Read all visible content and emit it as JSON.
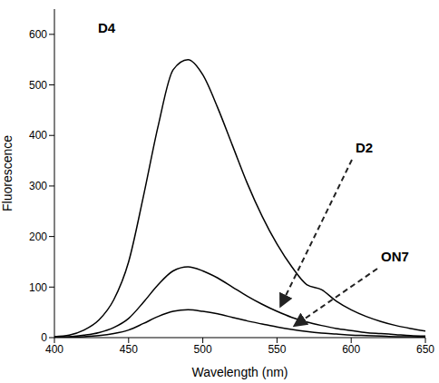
{
  "chart_data": {
    "type": "line",
    "x_label": "Wavelength (nm)",
    "y_label": "Fluorescence",
    "x": [
      400,
      410,
      420,
      430,
      440,
      450,
      460,
      470,
      480,
      490,
      500,
      510,
      520,
      530,
      540,
      550,
      560,
      570,
      580,
      590,
      600,
      610,
      620,
      630,
      640,
      650
    ],
    "series": [
      {
        "name": "D4",
        "color": "#000000",
        "values": [
          2,
          5,
          15,
          35,
          75,
          150,
          280,
          420,
          530,
          550,
          520,
          455,
          380,
          305,
          240,
          185,
          140,
          105,
          95,
          72,
          55,
          42,
          32,
          24,
          18,
          13
        ]
      },
      {
        "name": "D2",
        "color": "#000000",
        "values": [
          1,
          2,
          5,
          10,
          20,
          38,
          70,
          105,
          132,
          140,
          132,
          118,
          100,
          82,
          66,
          52,
          40,
          31,
          24,
          18,
          14,
          10,
          8,
          6,
          4,
          3
        ]
      },
      {
        "name": "ON7",
        "color": "#000000",
        "values": [
          1,
          1,
          2,
          4,
          8,
          15,
          28,
          42,
          52,
          55,
          52,
          47,
          40,
          33,
          27,
          21,
          16,
          12,
          9,
          7,
          5,
          4,
          3,
          2,
          2,
          1
        ]
      }
    ],
    "xlim": [
      400,
      650
    ],
    "xticks": [
      400,
      450,
      500,
      550,
      600,
      650
    ],
    "ylim": [
      0,
      650
    ],
    "yticks": [
      0,
      100,
      200,
      300,
      400,
      500,
      600
    ],
    "grid": false
  }
}
